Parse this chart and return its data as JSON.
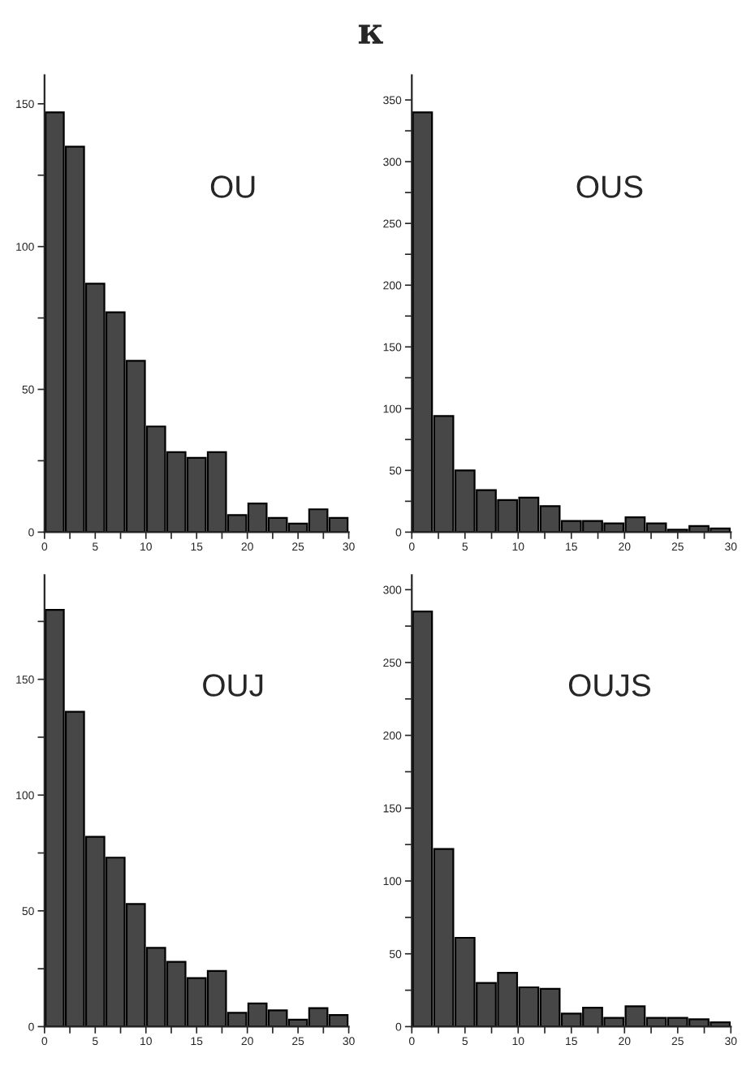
{
  "chart_data": [
    {
      "type": "histogram",
      "title": "κ",
      "annotations": [
        "OU"
      ],
      "bins": [
        0,
        2,
        4,
        6,
        8,
        10,
        12,
        14,
        16,
        18,
        20,
        22,
        24,
        26,
        28,
        30
      ],
      "values": [
        147,
        135,
        87,
        77,
        60,
        37,
        28,
        26,
        28,
        6,
        10,
        5,
        3,
        8,
        5
      ],
      "color": "#474747",
      "xlim": [
        0,
        30
      ],
      "xticks": [
        0,
        {
          "value": 2.5,
          "label": null
        },
        5,
        {
          "value": 7.5,
          "label": null
        },
        10,
        {
          "value": 12.5,
          "label": null
        },
        15,
        {
          "value": 17.5,
          "label": null
        },
        20,
        {
          "value": 22.5,
          "label": null
        },
        25,
        {
          "value": 27.5,
          "label": null
        },
        30
      ],
      "ylim": [
        0,
        160
      ],
      "yticks": [
        0,
        {
          "value": 25,
          "label": null
        },
        50,
        {
          "value": 75,
          "label": null
        },
        100,
        {
          "value": 125,
          "label": null
        },
        150
      ],
      "grid": false
    },
    {
      "type": "histogram",
      "annotations": [
        "OUS"
      ],
      "bins": [
        0,
        2,
        4,
        6,
        8,
        10,
        12,
        14,
        16,
        18,
        20,
        22,
        24,
        26,
        28,
        30
      ],
      "values": [
        340,
        94,
        50,
        34,
        26,
        28,
        21,
        9,
        9,
        7,
        12,
        7,
        2,
        5,
        3
      ],
      "color": "#474747",
      "xlim": [
        0,
        30
      ],
      "xticks": [
        0,
        {
          "value": 2.5,
          "label": null
        },
        5,
        {
          "value": 7.5,
          "label": null
        },
        10,
        {
          "value": 12.5,
          "label": null
        },
        15,
        {
          "value": 17.5,
          "label": null
        },
        20,
        {
          "value": 22.5,
          "label": null
        },
        25,
        {
          "value": 27.5,
          "label": null
        },
        30
      ],
      "ylim": [
        0,
        370
      ],
      "yticks": [
        0,
        {
          "value": 25,
          "label": null
        },
        50,
        {
          "value": 75,
          "label": null
        },
        100,
        {
          "value": 125,
          "label": null
        },
        150,
        {
          "value": 175,
          "label": null
        },
        200,
        {
          "value": 225,
          "label": null
        },
        250,
        {
          "value": 275,
          "label": null
        },
        300,
        {
          "value": 325,
          "label": null
        },
        350
      ],
      "grid": false
    },
    {
      "type": "histogram",
      "annotations": [
        "OUJ"
      ],
      "bins": [
        0,
        2,
        4,
        6,
        8,
        10,
        12,
        14,
        16,
        18,
        20,
        22,
        24,
        26,
        28,
        30
      ],
      "values": [
        180,
        136,
        82,
        73,
        53,
        34,
        28,
        21,
        24,
        6,
        10,
        7,
        3,
        8,
        5
      ],
      "color": "#474747",
      "xlim": [
        0,
        30
      ],
      "xticks": [
        0,
        {
          "value": 2.5,
          "label": null
        },
        5,
        {
          "value": 7.5,
          "label": null
        },
        10,
        {
          "value": 12.5,
          "label": null
        },
        15,
        {
          "value": 17.5,
          "label": null
        },
        20,
        {
          "value": 22.5,
          "label": null
        },
        25,
        {
          "value": 27.5,
          "label": null
        },
        30
      ],
      "ylim": [
        0,
        195
      ],
      "yticks": [
        0,
        {
          "value": 25,
          "label": null
        },
        50,
        {
          "value": 75,
          "label": null
        },
        100,
        {
          "value": 125,
          "label": null
        },
        150,
        {
          "value": 175,
          "label": null
        }
      ],
      "grid": false
    },
    {
      "type": "histogram",
      "annotations": [
        "OUJS"
      ],
      "bins": [
        0,
        2,
        4,
        6,
        8,
        10,
        12,
        14,
        16,
        18,
        20,
        22,
        24,
        26,
        28,
        30
      ],
      "values": [
        285,
        122,
        61,
        30,
        37,
        27,
        26,
        9,
        13,
        6,
        14,
        6,
        6,
        5,
        3
      ],
      "color": "#474747",
      "xlim": [
        0,
        30
      ],
      "xticks": [
        0,
        {
          "value": 2.5,
          "label": null
        },
        5,
        {
          "value": 7.5,
          "label": null
        },
        10,
        {
          "value": 12.5,
          "label": null
        },
        15,
        {
          "value": 17.5,
          "label": null
        },
        20,
        {
          "value": 22.5,
          "label": null
        },
        25,
        {
          "value": 27.5,
          "label": null
        },
        30
      ],
      "ylim": [
        0,
        310
      ],
      "yticks": [
        0,
        {
          "value": 25,
          "label": null
        },
        50,
        {
          "value": 75,
          "label": null
        },
        100,
        {
          "value": 125,
          "label": null
        },
        150,
        {
          "value": 175,
          "label": null
        },
        200,
        {
          "value": 225,
          "label": null
        },
        250,
        {
          "value": 275,
          "label": null
        },
        300
      ],
      "grid": false
    }
  ]
}
